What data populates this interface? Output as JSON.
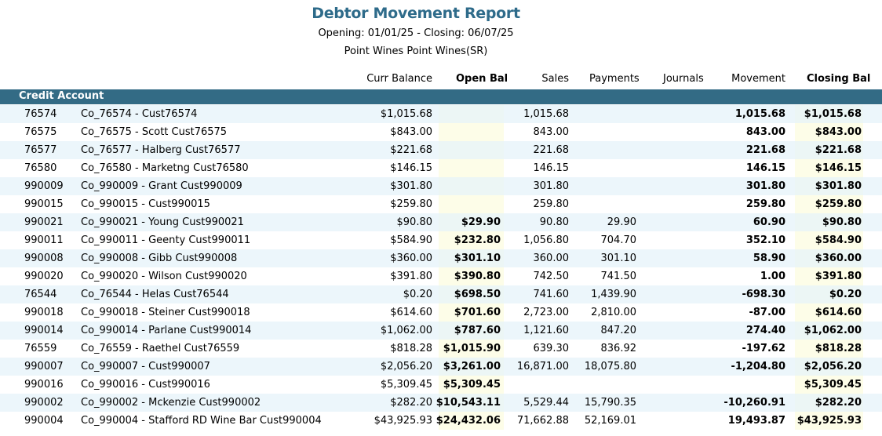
{
  "report": {
    "title": "Debtor Movement Report",
    "subtitle_dates": "Opening: 01/01/25 - Closing: 06/07/25",
    "subtitle_company": "Point Wines Point Wines(SR)"
  },
  "columns": {
    "curr_balance": "Curr Balance",
    "open_bal": "Open Bal",
    "sales": "Sales",
    "payments": "Payments",
    "journals": "Journals",
    "movement": "Movement",
    "closing_bal": "Closing Bal"
  },
  "group": {
    "label": "Credit Account"
  },
  "rows": [
    {
      "account": "76574",
      "name": "Co_76574 -  Cust76574",
      "curr_balance": "$1,015.68",
      "open_bal": "",
      "sales": "1,015.68",
      "payments": "",
      "journals": "",
      "movement": "1,015.68",
      "closing_bal": "$1,015.68"
    },
    {
      "account": "76575",
      "name": "Co_76575 - Scott Cust76575",
      "curr_balance": "$843.00",
      "open_bal": "",
      "sales": "843.00",
      "payments": "",
      "journals": "",
      "movement": "843.00",
      "closing_bal": "$843.00"
    },
    {
      "account": "76577",
      "name": "Co_76577 - Halberg Cust76577",
      "curr_balance": "$221.68",
      "open_bal": "",
      "sales": "221.68",
      "payments": "",
      "journals": "",
      "movement": "221.68",
      "closing_bal": "$221.68"
    },
    {
      "account": "76580",
      "name": "Co_76580 - Marketng Cust76580",
      "curr_balance": "$146.15",
      "open_bal": "",
      "sales": "146.15",
      "payments": "",
      "journals": "",
      "movement": "146.15",
      "closing_bal": "$146.15"
    },
    {
      "account": "990009",
      "name": "Co_990009 - Grant Cust990009",
      "curr_balance": "$301.80",
      "open_bal": "",
      "sales": "301.80",
      "payments": "",
      "journals": "",
      "movement": "301.80",
      "closing_bal": "$301.80"
    },
    {
      "account": "990015",
      "name": "Co_990015 -  Cust990015",
      "curr_balance": "$259.80",
      "open_bal": "",
      "sales": "259.80",
      "payments": "",
      "journals": "",
      "movement": "259.80",
      "closing_bal": "$259.80"
    },
    {
      "account": "990021",
      "name": "Co_990021 - Young Cust990021",
      "curr_balance": "$90.80",
      "open_bal": "$29.90",
      "sales": "90.80",
      "payments": "29.90",
      "journals": "",
      "movement": "60.90",
      "closing_bal": "$90.80"
    },
    {
      "account": "990011",
      "name": "Co_990011 - Geenty Cust990011",
      "curr_balance": "$584.90",
      "open_bal": "$232.80",
      "sales": "1,056.80",
      "payments": "704.70",
      "journals": "",
      "movement": "352.10",
      "closing_bal": "$584.90"
    },
    {
      "account": "990008",
      "name": "Co_990008 - Gibb Cust990008",
      "curr_balance": "$360.00",
      "open_bal": "$301.10",
      "sales": "360.00",
      "payments": "301.10",
      "journals": "",
      "movement": "58.90",
      "closing_bal": "$360.00"
    },
    {
      "account": "990020",
      "name": "Co_990020 - Wilson Cust990020",
      "curr_balance": "$391.80",
      "open_bal": "$390.80",
      "sales": "742.50",
      "payments": "741.50",
      "journals": "",
      "movement": "1.00",
      "closing_bal": "$391.80"
    },
    {
      "account": "76544",
      "name": "Co_76544 - Helas Cust76544",
      "curr_balance": "$0.20",
      "open_bal": "$698.50",
      "sales": "741.60",
      "payments": "1,439.90",
      "journals": "",
      "movement": "-698.30",
      "closing_bal": "$0.20"
    },
    {
      "account": "990018",
      "name": "Co_990018 - Steiner Cust990018",
      "curr_balance": "$614.60",
      "open_bal": "$701.60",
      "sales": "2,723.00",
      "payments": "2,810.00",
      "journals": "",
      "movement": "-87.00",
      "closing_bal": "$614.60"
    },
    {
      "account": "990014",
      "name": "Co_990014 - Parlane Cust990014",
      "curr_balance": "$1,062.00",
      "open_bal": "$787.60",
      "sales": "1,121.60",
      "payments": "847.20",
      "journals": "",
      "movement": "274.40",
      "closing_bal": "$1,062.00"
    },
    {
      "account": "76559",
      "name": "Co_76559 - Raethel Cust76559",
      "curr_balance": "$818.28",
      "open_bal": "$1,015.90",
      "sales": "639.30",
      "payments": "836.92",
      "journals": "",
      "movement": "-197.62",
      "closing_bal": "$818.28"
    },
    {
      "account": "990007",
      "name": "Co_990007 -  Cust990007",
      "curr_balance": "$2,056.20",
      "open_bal": "$3,261.00",
      "sales": "16,871.00",
      "payments": "18,075.80",
      "journals": "",
      "movement": "-1,204.80",
      "closing_bal": "$2,056.20"
    },
    {
      "account": "990016",
      "name": "Co_990016 -  Cust990016",
      "curr_balance": "$5,309.45",
      "open_bal": "$5,309.45",
      "sales": "",
      "payments": "",
      "journals": "",
      "movement": "",
      "closing_bal": "$5,309.45"
    },
    {
      "account": "990002",
      "name": "Co_990002 - Mckenzie Cust990002",
      "curr_balance": "$282.20",
      "open_bal": "$10,543.11",
      "sales": "5,529.44",
      "payments": "15,790.35",
      "journals": "",
      "movement": "-10,260.91",
      "closing_bal": "$282.20"
    },
    {
      "account": "990004",
      "name": "Co_990004 - Stafford RD  Wine Bar Cust990004",
      "curr_balance": "$43,925.93",
      "open_bal": "$24,432.06",
      "sales": "71,662.88",
      "payments": "52,169.01",
      "journals": "",
      "movement": "19,493.87",
      "closing_bal": "$43,925.93"
    }
  ]
}
